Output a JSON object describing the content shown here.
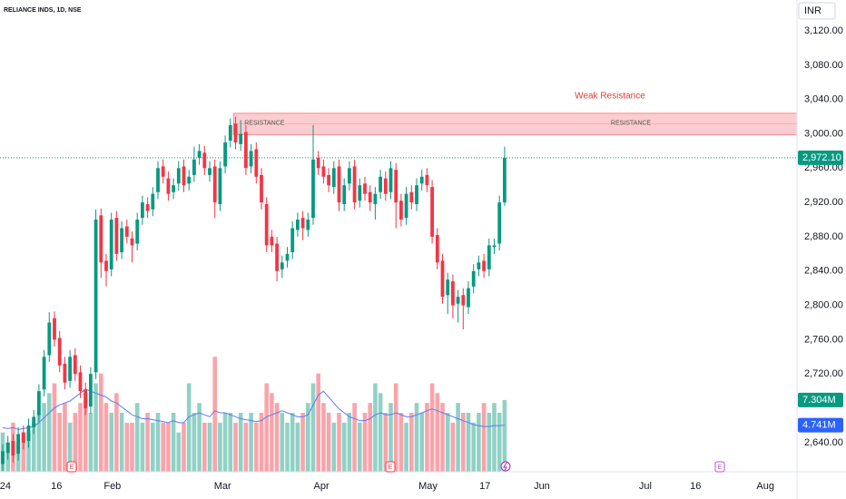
{
  "chart_data": {
    "type": "candlestick",
    "title": "RELIANCE INDS, 1D, NSE",
    "currency": "INR",
    "annotation": "Weak Resistance",
    "zone": {
      "low": 2999,
      "high": 3024,
      "start": 44.6,
      "label": "RESISTANCE"
    },
    "last_price": {
      "value": 2972.1,
      "label": "2,972.10"
    },
    "last_volume_label": "7.304M",
    "last_ma_label": "4.741M",
    "event_labels": [
      "E",
      "E",
      "E"
    ],
    "ylim": [
      2606,
      3156
    ],
    "y2lim": [
      0,
      48
    ],
    "yticks": [
      {
        "value": 2640,
        "label": "2,640.00"
      },
      {
        "value": 2720,
        "label": "2,720.00"
      },
      {
        "value": 2760,
        "label": "2,760.00"
      },
      {
        "value": 2800,
        "label": "2,800.00"
      },
      {
        "value": 2840,
        "label": "2,840.00"
      },
      {
        "value": 2880,
        "label": "2,880.00"
      },
      {
        "value": 2920,
        "label": "2,920.00"
      },
      {
        "value": 2960,
        "label": "2,960.00"
      },
      {
        "value": 3000,
        "label": "3,000.00"
      },
      {
        "value": 3040,
        "label": "3,040.00"
      },
      {
        "value": 3080,
        "label": "3,080.00"
      },
      {
        "value": 3120,
        "label": "3,120.00"
      }
    ],
    "xticks": [
      {
        "value": 0.5,
        "label": "24"
      },
      {
        "value": 10.4,
        "label": "16"
      },
      {
        "value": 21.2,
        "label": "Feb"
      },
      {
        "value": 42.5,
        "label": "Mar"
      },
      {
        "value": 61.6,
        "label": "Apr"
      },
      {
        "value": 82.2,
        "label": "May"
      },
      {
        "value": 93.2,
        "label": "17"
      },
      {
        "value": 104.2,
        "label": "Jun"
      },
      {
        "value": 124.2,
        "label": "Jul"
      },
      {
        "value": 133.9,
        "label": "16"
      },
      {
        "value": 147.4,
        "label": "Aug"
      }
    ],
    "grid": false,
    "up_color": "#089981",
    "down_color": "#f23645",
    "ma_color": "#5b7cf0",
    "open": [
      2615,
      2628,
      2642,
      2627,
      2652,
      2642,
      2658,
      2672,
      2702,
      2742,
      2785,
      2762,
      2732,
      2712,
      2742,
      2722,
      2702,
      2682,
      2722,
      2905,
      2852,
      2842,
      2902,
      2862,
      2892,
      2878,
      2872,
      2902,
      2918,
      2912,
      2932,
      2962,
      2948,
      2932,
      2942,
      2962,
      2942,
      2952,
      2972,
      2978,
      2952,
      2962,
      2918,
      2962,
      2992,
      3012,
      2988,
      3002,
      2962,
      2982,
      2952,
      2918,
      2880,
      2872,
      2842,
      2852,
      2862,
      2888,
      2902,
      2888,
      2902,
      2972,
      2962,
      2952,
      2938,
      2962,
      2918,
      2942,
      2962,
      2922,
      2942,
      2932,
      2918,
      2932,
      2948,
      2932,
      2958,
      2922,
      2902,
      2932,
      2918,
      2942,
      2952,
      2938,
      2882,
      2852,
      2812,
      2828,
      2802,
      2812,
      2798,
      2822,
      2842,
      2852,
      2842,
      2868,
      2872,
      2920
    ],
    "high": [
      2638,
      2648,
      2650,
      2658,
      2660,
      2668,
      2678,
      2708,
      2748,
      2792,
      2793,
      2770,
      2740,
      2748,
      2750,
      2730,
      2710,
      2728,
      2912,
      2913,
      2860,
      2908,
      2910,
      2898,
      2900,
      2886,
      2908,
      2928,
      2926,
      2938,
      2968,
      2970,
      2956,
      2948,
      2968,
      2970,
      2958,
      2985,
      2988,
      2986,
      2968,
      2970,
      2968,
      2998,
      3018,
      3020,
      3016,
      3010,
      2988,
      2990,
      2960,
      2926,
      2888,
      2880,
      2858,
      2868,
      2898,
      2908,
      2910,
      2908,
      3010,
      2980,
      2970,
      2960,
      2968,
      2970,
      2948,
      2968,
      2970,
      2948,
      2950,
      2940,
      2938,
      2958,
      2956,
      2968,
      2966,
      2930,
      2938,
      2940,
      2948,
      2958,
      2960,
      2946,
      2890,
      2860,
      2838,
      2836,
      2818,
      2820,
      2828,
      2848,
      2858,
      2860,
      2878,
      2878,
      2928,
      2985
    ],
    "low": [
      2607,
      2620,
      2617,
      2619,
      2632,
      2634,
      2650,
      2664,
      2694,
      2734,
      2752,
      2722,
      2702,
      2704,
      2712,
      2692,
      2672,
      2674,
      2714,
      2832,
      2822,
      2834,
      2852,
      2854,
      2872,
      2850,
      2864,
      2894,
      2902,
      2904,
      2924,
      2942,
      2922,
      2924,
      2934,
      2932,
      2934,
      2944,
      2964,
      2952,
      2944,
      2902,
      2910,
      2954,
      2984,
      2982,
      2980,
      2952,
      2954,
      2942,
      2912,
      2862,
      2862,
      2828,
      2832,
      2844,
      2854,
      2880,
      2876,
      2880,
      2894,
      2952,
      2942,
      2932,
      2930,
      2910,
      2910,
      2934,
      2912,
      2914,
      2922,
      2910,
      2900,
      2924,
      2922,
      2924,
      2890,
      2892,
      2894,
      2912,
      2910,
      2934,
      2932,
      2872,
      2842,
      2802,
      2790,
      2785,
      2780,
      2772,
      2790,
      2814,
      2834,
      2832,
      2834,
      2860,
      2864,
      2916
    ],
    "close": [
      2630,
      2640,
      2625,
      2650,
      2640,
      2660,
      2670,
      2700,
      2740,
      2780,
      2760,
      2730,
      2710,
      2740,
      2720,
      2700,
      2680,
      2720,
      2900,
      2850,
      2840,
      2900,
      2860,
      2890,
      2880,
      2870,
      2900,
      2920,
      2910,
      2930,
      2960,
      2950,
      2930,
      2940,
      2960,
      2940,
      2950,
      2970,
      2980,
      2960,
      2960,
      2920,
      2960,
      2990,
      3010,
      2990,
      3000,
      2960,
      2980,
      2950,
      2920,
      2870,
      2870,
      2840,
      2850,
      2860,
      2890,
      2900,
      2890,
      2900,
      2970,
      2960,
      2950,
      2940,
      2960,
      2920,
      2940,
      2960,
      2920,
      2940,
      2930,
      2920,
      2930,
      2950,
      2930,
      2960,
      2920,
      2900,
      2930,
      2920,
      2940,
      2950,
      2940,
      2880,
      2850,
      2810,
      2830,
      2800,
      2810,
      2800,
      2820,
      2840,
      2850,
      2840,
      2870,
      2870,
      2920,
      2972.1
    ],
    "volume": [
      4,
      3,
      5,
      3,
      4,
      4,
      5,
      6,
      7,
      8,
      9,
      6,
      7,
      5,
      6,
      7,
      8,
      6,
      9,
      10,
      7,
      6,
      8,
      6,
      5,
      5,
      7,
      5,
      6,
      5,
      6,
      5,
      5,
      6,
      4,
      5,
      9,
      6,
      7,
      5,
      5,
      11.7,
      5,
      6,
      6,
      5,
      6,
      5,
      6,
      5,
      6,
      9,
      8,
      7,
      6,
      5,
      6,
      5,
      6,
      7,
      9,
      10,
      7,
      6,
      5,
      6,
      5,
      6,
      7,
      5,
      6,
      7,
      9,
      8,
      6,
      7,
      9,
      6,
      5,
      6,
      7,
      6,
      7,
      9,
      8,
      7,
      6,
      5,
      7,
      6,
      6,
      5,
      6,
      7,
      6,
      7,
      6,
      7.304
    ],
    "volume_ma": [
      4.5,
      4.4,
      4.5,
      4.3,
      4.4,
      4.5,
      4.6,
      5.0,
      5.5,
      6.0,
      6.5,
      6.8,
      7.0,
      7.2,
      7.6,
      8.0,
      8.4,
      8.2,
      8.0,
      7.8,
      7.6,
      7.2,
      7.0,
      6.6,
      6.2,
      5.8,
      5.6,
      5.4,
      5.4,
      5.3,
      5.2,
      5.1,
      5.0,
      5.2,
      5.0,
      5.0,
      5.6,
      5.8,
      6.0,
      5.8,
      5.6,
      6.2,
      6.0,
      6.0,
      5.8,
      5.6,
      5.4,
      5.3,
      5.2,
      5.1,
      5.2,
      5.6,
      5.8,
      6.0,
      6.2,
      6.0,
      5.8,
      5.6,
      5.6,
      5.8,
      6.8,
      7.8,
      8.2,
      7.6,
      7.0,
      6.4,
      6.0,
      5.6,
      5.4,
      5.2,
      5.2,
      5.4,
      5.8,
      6.0,
      5.8,
      5.8,
      6.0,
      5.8,
      5.6,
      5.6,
      5.8,
      6.0,
      6.2,
      6.4,
      6.2,
      6.0,
      5.8,
      5.6,
      5.4,
      5.2,
      5.0,
      4.8,
      4.7,
      4.6,
      4.6,
      4.7,
      4.7,
      4.741
    ]
  }
}
